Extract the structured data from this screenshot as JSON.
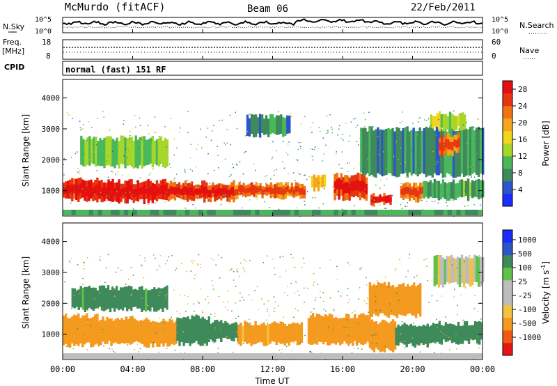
{
  "header": {
    "station": "McMurdo (fitACF)",
    "beam": "Beam 06",
    "date": "22/Feb/2011"
  },
  "noise_panel": {
    "left_label": "N.Sky",
    "right_label": "N.Search",
    "left_ticks": [
      "10^5",
      "10^0"
    ],
    "right_ticks": [
      "10^5",
      "10^0"
    ]
  },
  "freq_panel": {
    "left_label_1": "Freq.",
    "left_label_2": "[MHz]",
    "left_ticks": [
      "18",
      "8"
    ],
    "right_label": "Nave",
    "right_ticks": [
      "60",
      "0"
    ]
  },
  "cpid": {
    "label": "CPID",
    "value": "normal (fast) 151 RF"
  },
  "x_axis": {
    "title": "Time UT",
    "ticks": [
      "00:00",
      "04:00",
      "08:00",
      "12:00",
      "16:00",
      "20:00",
      "00:00"
    ]
  },
  "colors": {
    "power_scale": [
      "#1a2cff",
      "#2d55c9",
      "#3e8a5a",
      "#4ab85a",
      "#a6d62a",
      "#f2d51d",
      "#f7a51b",
      "#f07414",
      "#e8350f",
      "#e60f0f"
    ],
    "velocity_scale": [
      "#e61414",
      "#f05a14",
      "#f49a1f",
      "#f5c240",
      "#bdbdbd",
      "#bdbdbd",
      "#5fc24a",
      "#3e8a5a",
      "#2d55c9",
      "#1a2cff"
    ]
  },
  "chart_data": [
    {
      "type": "heatmap",
      "name": "power",
      "ylabel": "Slant Range [km]",
      "yticks": [
        "1000",
        "2000",
        "3000",
        "4000"
      ],
      "ytick_values": [
        1000,
        2000,
        3000,
        4000
      ],
      "ylim": [
        180,
        4600
      ],
      "xlim_hours": [
        0,
        24
      ],
      "colorbar_label": "Power [dB]",
      "colorbar_ticks": [
        "4",
        "8",
        "12",
        "16",
        "20",
        "24",
        "28"
      ],
      "colorbar_range": [
        0,
        30
      ],
      "bands": [
        {
          "t0": 0.0,
          "t1": 2.2,
          "r0": 700,
          "r1": 1350,
          "level": 26
        },
        {
          "t0": 2.2,
          "t1": 6.0,
          "r0": 650,
          "r1": 1300,
          "level": 27
        },
        {
          "t0": 6.0,
          "t1": 9.8,
          "r0": 700,
          "r1": 1250,
          "level": 24
        },
        {
          "t0": 9.8,
          "t1": 13.8,
          "r0": 800,
          "r1": 1200,
          "level": 22
        },
        {
          "t0": 14.2,
          "t1": 15.0,
          "r0": 1050,
          "r1": 1450,
          "level": 18
        },
        {
          "t0": 15.5,
          "t1": 17.4,
          "r0": 750,
          "r1": 1500,
          "level": 25
        },
        {
          "t0": 17.6,
          "t1": 18.8,
          "r0": 550,
          "r1": 900,
          "level": 26
        },
        {
          "t0": 19.3,
          "t1": 20.6,
          "r0": 700,
          "r1": 1200,
          "level": 21
        },
        {
          "t0": 20.6,
          "t1": 24.0,
          "r0": 750,
          "r1": 1300,
          "level": 10
        },
        {
          "t0": 17.0,
          "t1": 24.0,
          "r0": 1500,
          "r1": 3000,
          "level": 8
        },
        {
          "t0": 21.0,
          "t1": 23.0,
          "r0": 3000,
          "r1": 3500,
          "level": 14
        },
        {
          "t0": 21.5,
          "t1": 22.6,
          "r0": 2200,
          "r1": 2800,
          "level": 22
        },
        {
          "t0": 1.0,
          "t1": 6.0,
          "r0": 1800,
          "r1": 2700,
          "level": 12
        },
        {
          "t0": 10.5,
          "t1": 13.0,
          "r0": 2800,
          "r1": 3400,
          "level": 8
        }
      ]
    },
    {
      "type": "heatmap",
      "name": "velocity",
      "ylabel": "Slant Range [km]",
      "yticks": [
        "1000",
        "2000",
        "3000",
        "4000"
      ],
      "ytick_values": [
        1000,
        2000,
        3000,
        4000
      ],
      "ylim": [
        180,
        4600
      ],
      "xlim_hours": [
        0,
        24
      ],
      "colorbar_label": "Velocity [m s^-1]",
      "colorbar_ticks": [
        "1000",
        "500",
        "100",
        "25",
        "-25",
        "-100",
        "-500",
        "-1000"
      ],
      "bands": [
        {
          "t0": 0.0,
          "t1": 2.0,
          "r0": 650,
          "r1": 1600,
          "level": -300
        },
        {
          "t0": 2.0,
          "t1": 4.5,
          "r0": 700,
          "r1": 1500,
          "level": -200
        },
        {
          "t0": 4.5,
          "t1": 6.5,
          "r0": 650,
          "r1": 1450,
          "level": -400
        },
        {
          "t0": 6.5,
          "t1": 8.4,
          "r0": 700,
          "r1": 1550,
          "level": 300
        },
        {
          "t0": 8.4,
          "t1": 10.0,
          "r0": 800,
          "r1": 1400,
          "level": 200
        },
        {
          "t0": 10.0,
          "t1": 13.6,
          "r0": 700,
          "r1": 1350,
          "level": -150
        },
        {
          "t0": 14.0,
          "t1": 17.5,
          "r0": 700,
          "r1": 1600,
          "level": -350
        },
        {
          "t0": 17.5,
          "t1": 19.0,
          "r0": 500,
          "r1": 1400,
          "level": -400
        },
        {
          "t0": 19.0,
          "t1": 21.0,
          "r0": 650,
          "r1": 1300,
          "level": 200
        },
        {
          "t0": 21.0,
          "t1": 24.0,
          "r0": 750,
          "r1": 1350,
          "level": 300
        },
        {
          "t0": 17.5,
          "t1": 20.5,
          "r0": 1600,
          "r1": 2600,
          "level": -250
        },
        {
          "t0": 21.2,
          "t1": 24.0,
          "r0": 2600,
          "r1": 3500,
          "level": 0
        },
        {
          "t0": 0.5,
          "t1": 6.0,
          "r0": 1800,
          "r1": 2500,
          "level": 150
        }
      ]
    }
  ]
}
